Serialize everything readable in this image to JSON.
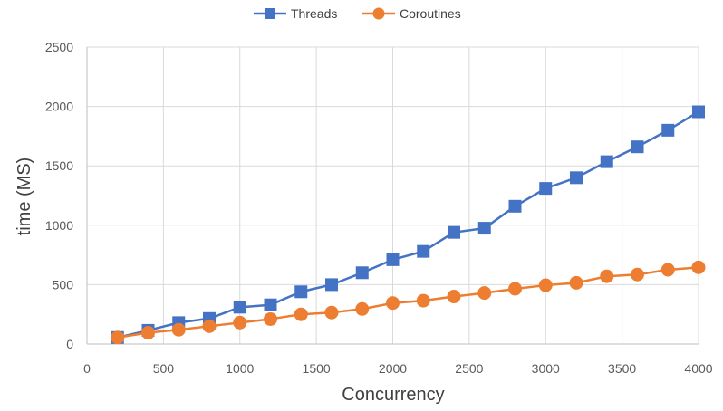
{
  "chart_data": {
    "type": "line",
    "title": "",
    "xlabel": "Concurrency",
    "ylabel": "time (MS)",
    "xlim": [
      0,
      4000
    ],
    "ylim": [
      0,
      2500
    ],
    "xticks": [
      "0",
      "500",
      "1000",
      "1500",
      "2000",
      "2500",
      "3000",
      "3500",
      "4000"
    ],
    "yticks": [
      "0",
      "500",
      "1000",
      "1500",
      "2000",
      "2500"
    ],
    "grid": true,
    "legend_position": "top",
    "x": [
      200,
      400,
      600,
      800,
      1000,
      1200,
      1400,
      1600,
      1800,
      2000,
      2200,
      2400,
      2600,
      2800,
      3000,
      3200,
      3400,
      3600,
      3800,
      4000
    ],
    "series": [
      {
        "name": "Threads",
        "color": "#4472c4",
        "marker": "square",
        "values": [
          55,
          115,
          180,
          215,
          310,
          330,
          440,
          500,
          600,
          710,
          780,
          940,
          975,
          1160,
          1310,
          1400,
          1535,
          1660,
          1800,
          1955
        ]
      },
      {
        "name": "Coroutines",
        "color": "#ed7d31",
        "marker": "circle",
        "values": [
          55,
          95,
          120,
          150,
          180,
          210,
          250,
          265,
          295,
          345,
          365,
          400,
          430,
          465,
          495,
          515,
          570,
          585,
          625,
          645
        ]
      }
    ]
  }
}
